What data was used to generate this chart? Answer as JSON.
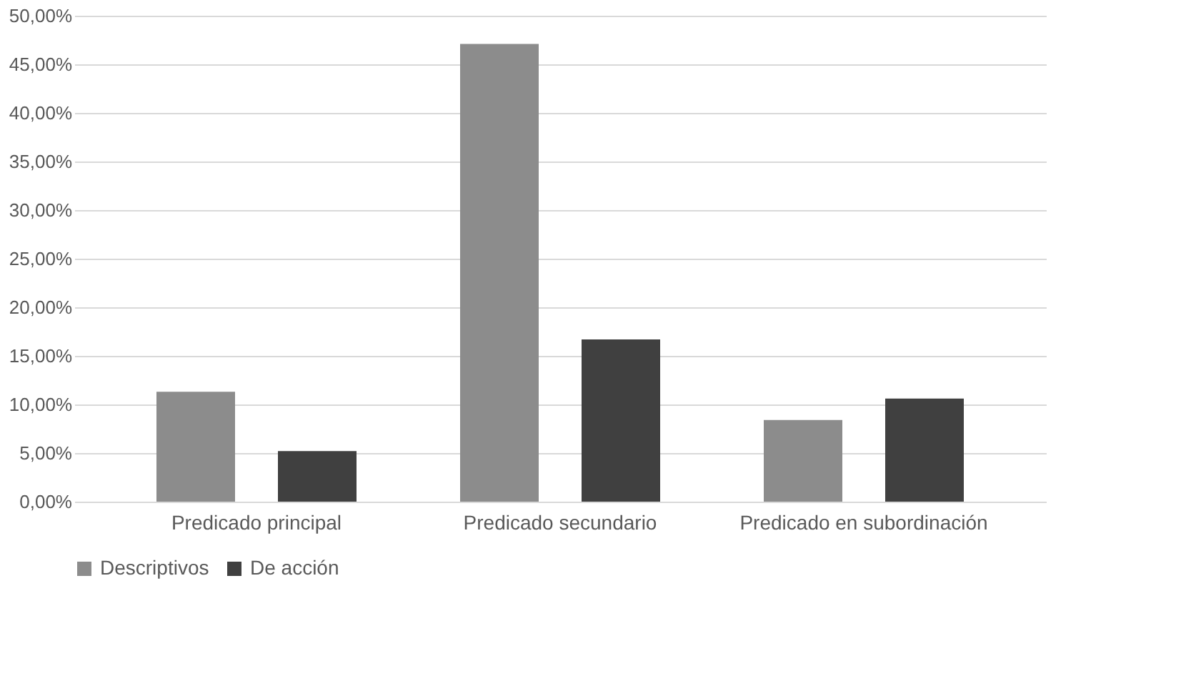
{
  "chart_data": {
    "type": "bar",
    "categories": [
      "Predicado principal",
      "Predicado secundario",
      "Predicado en subordinación"
    ],
    "series": [
      {
        "name": "Descriptivos",
        "color": "#8c8c8c",
        "values": [
          11.3,
          47.1,
          8.4
        ]
      },
      {
        "name": "De acción",
        "color": "#404040",
        "values": [
          5.2,
          16.7,
          10.6
        ]
      }
    ],
    "ylim": [
      0,
      50
    ],
    "yticks": [
      {
        "value": 0,
        "label": "0,00%"
      },
      {
        "value": 5,
        "label": "5,00%"
      },
      {
        "value": 10,
        "label": "10,00%"
      },
      {
        "value": 15,
        "label": "15,00%"
      },
      {
        "value": 20,
        "label": "20,00%"
      },
      {
        "value": 25,
        "label": "25,00%"
      },
      {
        "value": 30,
        "label": "30,00%"
      },
      {
        "value": 35,
        "label": "35,00%"
      },
      {
        "value": 40,
        "label": "40,00%"
      },
      {
        "value": 45,
        "label": "45,00%"
      },
      {
        "value": 50,
        "label": "50,00%"
      }
    ],
    "grid": "y",
    "legend": "bottom"
  }
}
